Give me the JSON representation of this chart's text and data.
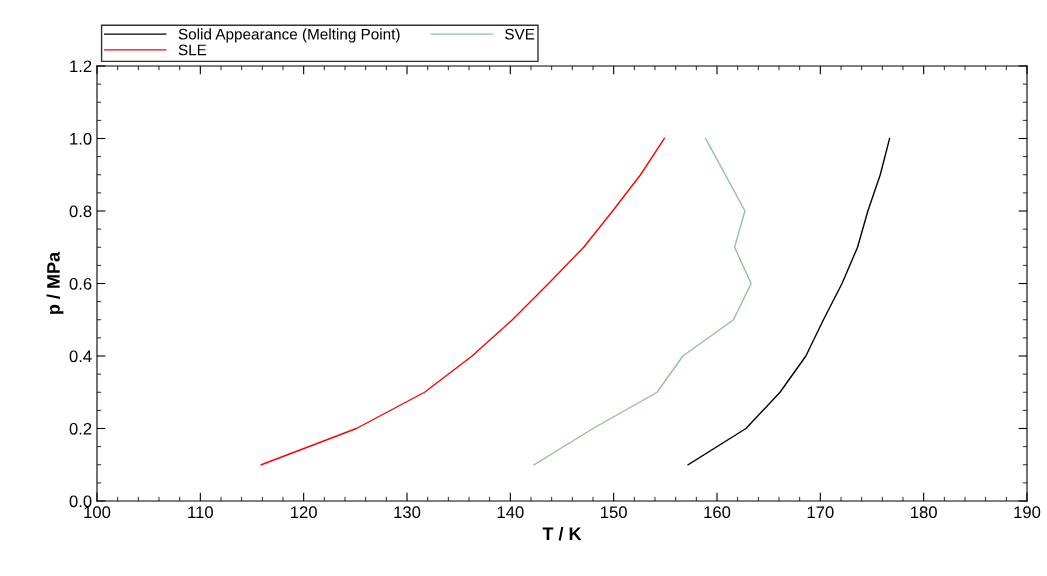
{
  "chart_data": {
    "type": "line",
    "xlabel": "T / K",
    "ylabel": "p / MPa",
    "xlim": [
      100,
      190
    ],
    "xticks": [
      100,
      110,
      120,
      130,
      140,
      150,
      160,
      170,
      180,
      190
    ],
    "ylim": [
      0.0,
      1.2
    ],
    "yticks": [
      {
        "value": 0,
        "label": "0.0"
      },
      0.2,
      0.4,
      0.6,
      0.8,
      {
        "value": 1,
        "label": "1.0"
      },
      1.2
    ],
    "grid": false,
    "legend": "top left",
    "marker": "none",
    "line_style": "solid",
    "series": [
      {
        "name": "Solid Appearance (Melting Point)",
        "color": "#000000",
        "x": [
          157.2,
          162.8,
          166.1,
          168.6,
          170.3,
          172.1,
          173.6,
          174.6,
          175.8,
          176.7
        ],
        "values": [
          0.1,
          0.2,
          0.3,
          0.4,
          0.5,
          0.6,
          0.7,
          0.8,
          0.9,
          1.0
        ]
      },
      {
        "name": "SLE",
        "color": "#ff0000",
        "x": [
          115.9,
          125.1,
          131.7,
          136.3,
          140.2,
          143.7,
          147.1,
          149.9,
          152.6,
          154.9
        ],
        "values": [
          0.1,
          0.2,
          0.3,
          0.4,
          0.5,
          0.6,
          0.7,
          0.8,
          0.9,
          1.0
        ]
      },
      {
        "name": "SVE",
        "color": "#8fc58f",
        "x": [
          142.3,
          148.0,
          154.2,
          156.7,
          161.6,
          163.3,
          161.7,
          162.7,
          158.9
        ],
        "values": [
          0.1,
          0.2,
          0.3,
          0.4,
          0.5,
          0.6,
          0.7,
          0.8,
          1.0
        ]
      }
    ]
  }
}
